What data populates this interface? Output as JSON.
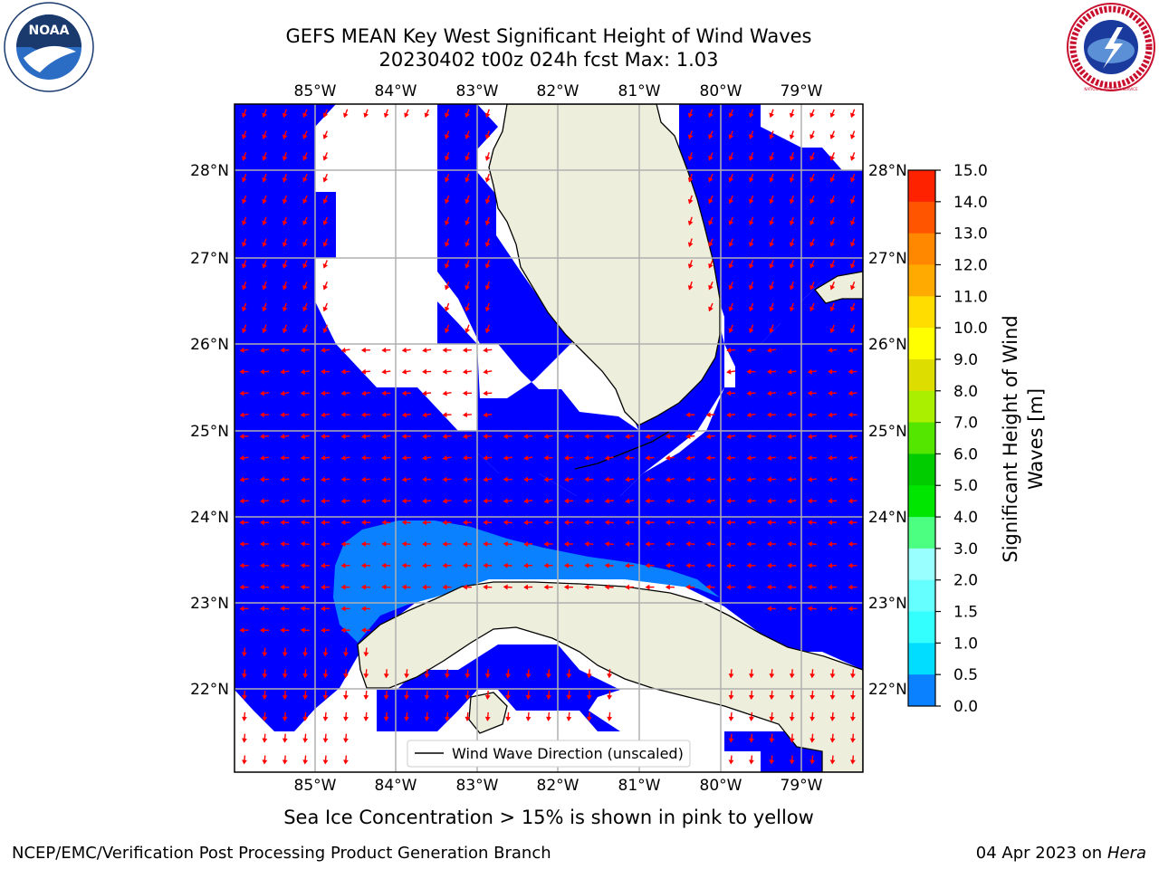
{
  "header": {
    "title_line1": "GEFS MEAN Key West Significant Height of Wind Waves",
    "title_line2": "20230402 t00z 024h fcst   Max: 1.03"
  },
  "logos": {
    "left": {
      "icon": "noaa-logo-icon",
      "text": "NOAA"
    },
    "right": {
      "icon": "nws-logo-icon",
      "text": "NATIONAL WEATHER SERVICE"
    }
  },
  "map": {
    "lon_ticks": [
      "85°W",
      "84°W",
      "83°W",
      "82°W",
      "81°W",
      "80°W",
      "79°W"
    ],
    "lat_ticks": [
      "28°N",
      "27°N",
      "26°N",
      "25°N",
      "24°N",
      "23°N",
      "22°N"
    ],
    "legend_label": "Wind Wave Direction (unscaled)",
    "colors": {
      "ocean_low": "#0000ff",
      "ocean_mid": "#0a8cff",
      "land": "#eeeedd",
      "arrow": "#ff0000",
      "grid": "#b0b0b0"
    }
  },
  "colorbar": {
    "label": "Significant Height of Wind Waves [m]",
    "label_line1": "Significant Height of Wind",
    "label_line2": "Waves [m]",
    "ticks": [
      "15.0",
      "14.0",
      "13.0",
      "12.0",
      "11.0",
      "10.0",
      "9.0",
      "8.0",
      "7.0",
      "6.0",
      "5.0",
      "4.0",
      "3.0",
      "2.0",
      "1.5",
      "1.0",
      "0.5",
      "0.0"
    ],
    "colors": [
      "#0000ff",
      "#0a82ff",
      "#00ddff",
      "#33ffff",
      "#66ffff",
      "#99ffff",
      "#4cff80",
      "#00e600",
      "#00cc00",
      "#55e600",
      "#aaee00",
      "#dddd00",
      "#ffff00",
      "#ffdd00",
      "#ffaa00",
      "#ff8800",
      "#ff5500",
      "#ff2200",
      "#ff0000"
    ]
  },
  "footer": {
    "subtitle": "Sea Ice Concentration > 15% is shown in pink to yellow",
    "branch": "NCEP/EMC/Verification Post Processing Product Generation Branch",
    "date": "04 Apr 2023 on",
    "host": "Hera"
  }
}
